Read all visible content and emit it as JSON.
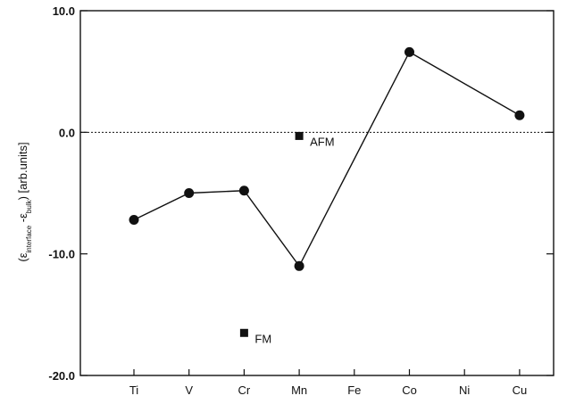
{
  "chart_data": {
    "type": "line",
    "categories": [
      "Ti",
      "V",
      "Cr",
      "Mn",
      "Fe",
      "Co",
      "Ni",
      "Cu"
    ],
    "ylim": [
      -20.0,
      10.0
    ],
    "yticks": [
      "10.0",
      "0.0",
      "-10.0",
      "-20.0"
    ],
    "ytick_values": [
      10,
      0,
      -10,
      -20
    ],
    "ylabel_parts": {
      "open": "(ε",
      "sub1": "interface",
      "mid": " -ε",
      "sub2": "bulk",
      "close": ") [arb.units]"
    },
    "series": [
      {
        "marker": "circle",
        "points": [
          {
            "x": "Ti",
            "y": -7.2
          },
          {
            "x": "V",
            "y": -5.0
          },
          {
            "x": "Cr",
            "y": -4.8
          },
          {
            "x": "Mn",
            "y": -11.0
          },
          {
            "x": "Co",
            "y": 6.6
          },
          {
            "x": "Cu",
            "y": 1.4
          }
        ]
      }
    ],
    "annotations": [
      {
        "label": "AFM",
        "x": "Mn",
        "y": -0.3,
        "marker": "square"
      },
      {
        "label": "FM",
        "x": "Cr",
        "y": -16.5,
        "marker": "square"
      }
    ],
    "reference_line": {
      "y": 0,
      "style": "dotted"
    },
    "colors": {
      "line": "#111111",
      "marker": "#111111",
      "axis": "#111111"
    }
  }
}
